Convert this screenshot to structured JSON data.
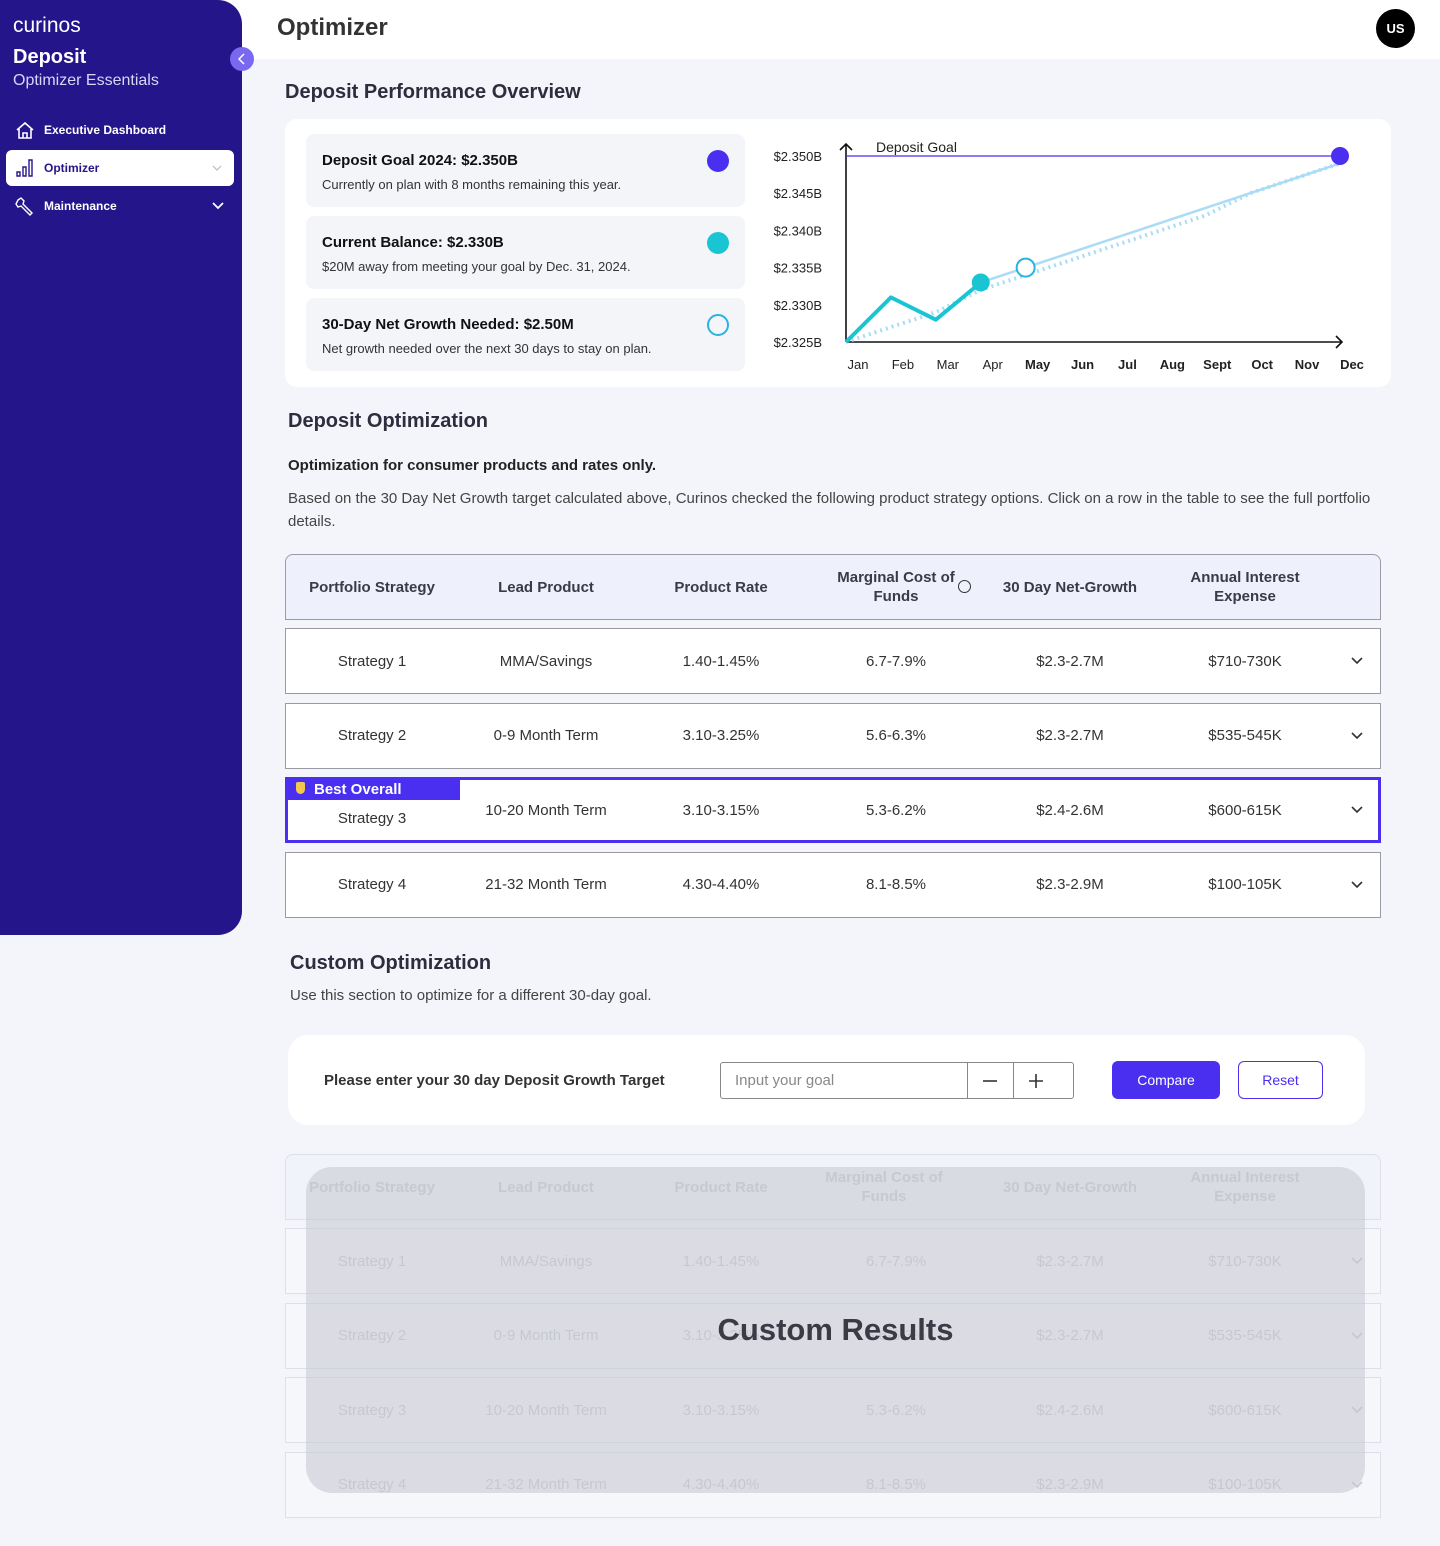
{
  "sidebar": {
    "logo": "curinos",
    "product": "Deposit",
    "edition": "Optimizer Essentials",
    "nav": [
      "Executive Dashboard",
      "Optimizer",
      "Maintenance"
    ]
  },
  "header": {
    "title": "Optimizer",
    "avatar": "US"
  },
  "overview": {
    "heading": "Deposit Performance Overview",
    "cards": [
      {
        "title": "Deposit Goal 2024: $2.350B",
        "text": "Currently on plan with 8 months remaining this year."
      },
      {
        "title": "Current Balance: $2.330B",
        "text": "$20M away from meeting your goal by Dec. 31, 2024."
      },
      {
        "title": "30-Day Net Growth Needed: $2.50M",
        "text": "Net growth needed over the next 30 days to stay on plan."
      }
    ],
    "chart": {
      "type": "line",
      "annotation": "Deposit Goal",
      "goal": 2.35,
      "goal_color": "#4a2ff0",
      "x": [
        "Jan",
        "Feb",
        "Mar",
        "Apr",
        "May",
        "Jun",
        "Jul",
        "Aug",
        "Sept",
        "Oct",
        "Nov",
        "Dec"
      ],
      "ylim": [
        2.325,
        2.35
      ],
      "yticks": [
        {
          "value": 2.35,
          "label": "$2.350B"
        },
        {
          "value": 2.345,
          "label": "$2.345B"
        },
        {
          "value": 2.34,
          "label": "$2.340B"
        },
        {
          "value": 2.335,
          "label": "$2.335B"
        },
        {
          "value": 2.33,
          "label": "$2.330B"
        },
        {
          "value": 2.325,
          "label": "$2.325B"
        }
      ],
      "series": [
        {
          "style": "dotted",
          "color": "#a9dcf5",
          "values": [
            2.325,
            2.327,
            2.329,
            2.332,
            2.334,
            2.336,
            2.338,
            2.34,
            2.342,
            2.345,
            2.347,
            2.349
          ]
        },
        {
          "style": "solid",
          "color": "#a9dcf5",
          "values": [
            null,
            null,
            null,
            2.333,
            2.335,
            2.337,
            2.339,
            2.341,
            2.343,
            2.345,
            2.347,
            2.349
          ]
        },
        {
          "style": "solid",
          "color": "#19c5d2",
          "values": [
            2.325,
            2.331,
            2.328,
            2.333,
            null,
            null,
            null,
            null,
            null,
            null,
            null,
            null
          ]
        },
        {
          "style": "dot",
          "color": "#19c5d2",
          "values": [
            null,
            null,
            null,
            2.333,
            null,
            null,
            null,
            null,
            null,
            null,
            null,
            null
          ]
        },
        {
          "style": "hollow",
          "color": "#2ab3e0",
          "values": [
            null,
            null,
            null,
            null,
            2.335,
            null,
            null,
            null,
            null,
            null,
            null,
            null
          ]
        },
        {
          "style": "dot",
          "color": "#4a2ff0",
          "values": [
            null,
            null,
            null,
            null,
            null,
            null,
            null,
            null,
            null,
            null,
            null,
            2.35
          ]
        }
      ]
    }
  },
  "optimization": {
    "heading": "Deposit Optimization",
    "subheading": "Optimization for consumer products and rates only.",
    "description": "Based on the 30 Day Net Growth target calculated above, Curinos checked the following product strategy options. Click on a row in the table to see the full portfolio details.",
    "table": {
      "headers": [
        "Portfolio Strategy",
        "Lead Product",
        "Product Rate",
        "Marginal Cost of Funds",
        "30 Day Net-Growth",
        "Annual Interest Expense"
      ],
      "badge": "Best Overall",
      "rows": [
        [
          "Strategy 1",
          "MMA/Savings",
          "1.40-1.45%",
          "6.7-7.9%",
          "$2.3-2.7M",
          "$710-730K"
        ],
        [
          "Strategy 2",
          "0-9 Month Term",
          "3.10-3.25%",
          "5.6-6.3%",
          "$2.3-2.7M",
          "$535-545K"
        ],
        [
          "Strategy 3",
          "10-20 Month Term",
          "3.10-3.15%",
          "5.3-6.2%",
          "$2.4-2.6M",
          "$600-615K"
        ],
        [
          "Strategy 4",
          "21-32 Month Term",
          "4.30-4.40%",
          "8.1-8.5%",
          "$2.3-2.9M",
          "$100-105K"
        ]
      ]
    }
  },
  "custom": {
    "heading": "Custom Optimization",
    "description": "Use this section to optimize for a different 30-day goal.",
    "form_label": "Please enter your 30 day Deposit Growth Target",
    "placeholder": "Input your goal",
    "compare": "Compare",
    "reset": "Reset",
    "overlay": "Custom Results"
  }
}
